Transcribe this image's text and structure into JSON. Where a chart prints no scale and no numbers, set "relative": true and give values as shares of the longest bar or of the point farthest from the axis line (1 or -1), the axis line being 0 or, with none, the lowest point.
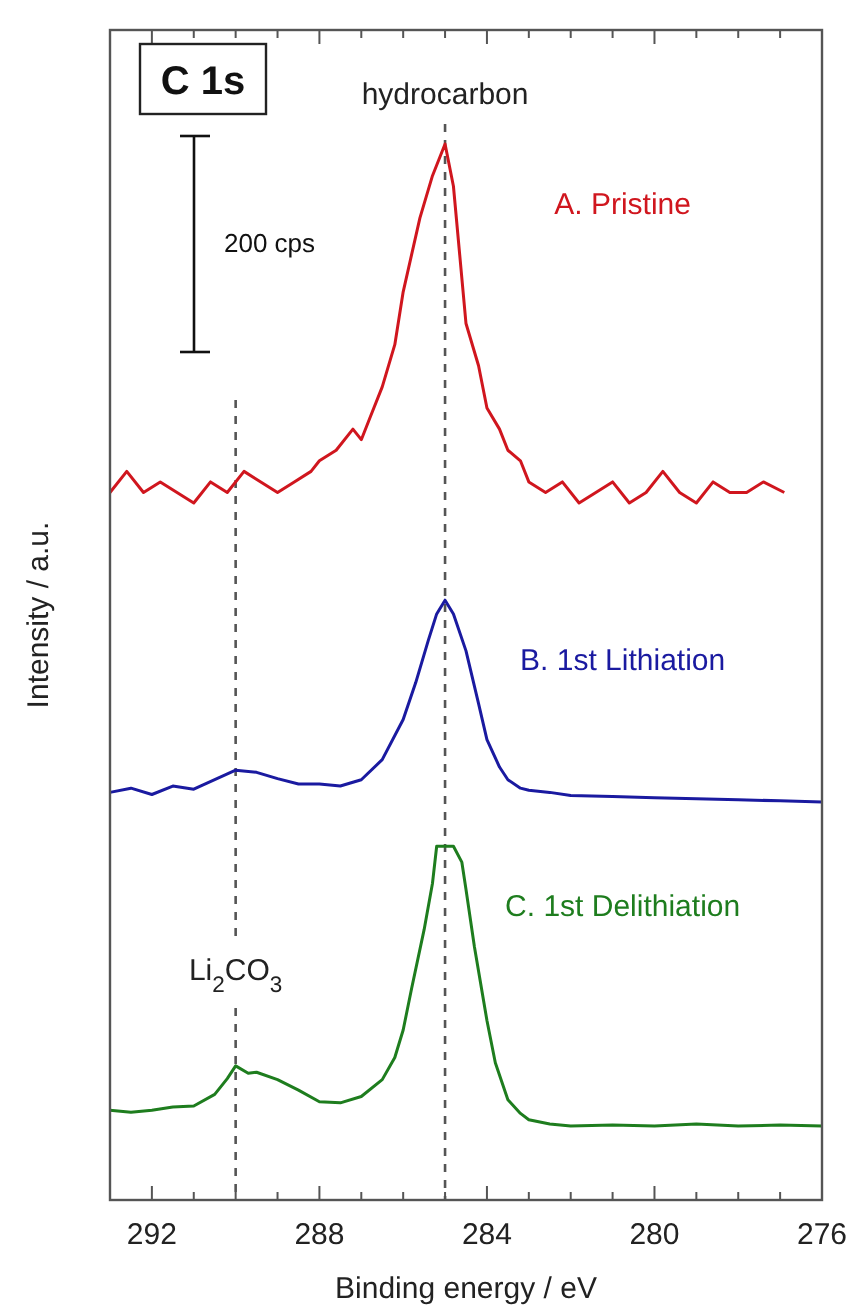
{
  "chart_data": {
    "type": "line",
    "title": "C 1s",
    "xlabel": "Binding energy / eV",
    "ylabel": "Intensity / a.u.",
    "relative": true,
    "xlim": [
      293,
      276
    ],
    "xticks": [
      292,
      {
        "value": 291,
        "label": null
      },
      {
        "value": 290,
        "label": null
      },
      {
        "value": 289,
        "label": null
      },
      288,
      {
        "value": 287,
        "label": null
      },
      {
        "value": 286,
        "label": null
      },
      {
        "value": 285,
        "label": null
      },
      284,
      {
        "value": 283,
        "label": null
      },
      {
        "value": 282,
        "label": null
      },
      {
        "value": 281,
        "label": null
      },
      280,
      {
        "value": 279,
        "label": null
      },
      {
        "value": 278,
        "label": null
      },
      {
        "value": 277,
        "label": null
      },
      276
    ],
    "annotations": [
      "200 cps"
    ],
    "ref_lines": [
      {
        "axis": "x",
        "value": 285,
        "label": "hydrocarbon",
        "line_style": "dashed",
        "color": "#555555"
      },
      {
        "axis": "x",
        "value": 290,
        "label": "Li$_{2}$CO$_{3}$",
        "line_style": "dashed",
        "color": "#555555"
      }
    ],
    "series": [
      {
        "name": "A. Pristine",
        "color": "#d0161e",
        "x": [
          293,
          292.6,
          292.2,
          291.8,
          291.4,
          291,
          290.6,
          290.2,
          289.8,
          289.4,
          289,
          288.6,
          288.2,
          288,
          287.6,
          287.2,
          287,
          286.8,
          286.5,
          286.2,
          286,
          285.6,
          285.3,
          285,
          284.8,
          284.5,
          284.2,
          284,
          283.7,
          283.5,
          283.2,
          283,
          282.6,
          282.2,
          281.8,
          281.4,
          281,
          280.6,
          280.2,
          279.8,
          279.4,
          279,
          278.6,
          278.2,
          277.8,
          277.4,
          276.9
        ],
        "values": [
          0.67,
          0.69,
          0.67,
          0.68,
          0.67,
          0.66,
          0.68,
          0.67,
          0.69,
          0.68,
          0.67,
          0.68,
          0.69,
          0.7,
          0.71,
          0.73,
          0.72,
          0.74,
          0.77,
          0.81,
          0.86,
          0.93,
          0.97,
          1,
          0.96,
          0.83,
          0.79,
          0.75,
          0.73,
          0.71,
          0.7,
          0.68,
          0.67,
          0.68,
          0.66,
          0.67,
          0.68,
          0.66,
          0.67,
          0.69,
          0.67,
          0.66,
          0.68,
          0.67,
          0.67,
          0.68,
          0.67
        ]
      },
      {
        "name": "B. 1st Lithiation",
        "color": "#1a1aa0",
        "x": [
          293,
          292.5,
          292,
          291.5,
          291,
          290.5,
          290,
          289.5,
          289,
          288.5,
          288,
          287.5,
          287,
          286.5,
          286,
          285.7,
          285.4,
          285.2,
          285,
          284.8,
          284.5,
          284.2,
          284,
          283.7,
          283.5,
          283.2,
          283,
          282.5,
          282,
          281,
          280,
          279,
          278,
          277,
          276
        ],
        "values": [
          0.386,
          0.39,
          0.384,
          0.392,
          0.389,
          0.398,
          0.407,
          0.405,
          0.399,
          0.394,
          0.394,
          0.392,
          0.398,
          0.417,
          0.455,
          0.49,
          0.53,
          0.555,
          0.568,
          0.555,
          0.52,
          0.47,
          0.436,
          0.41,
          0.398,
          0.39,
          0.388,
          0.386,
          0.383,
          0.382,
          0.381,
          0.38,
          0.379,
          0.378,
          0.377
        ]
      },
      {
        "name": "C. 1st Delithiation",
        "color": "#1e7d1e",
        "x": [
          293,
          292.5,
          292,
          291.5,
          291,
          290.5,
          290.2,
          290,
          289.7,
          289.5,
          289,
          288.5,
          288,
          287.5,
          287,
          286.5,
          286.2,
          286,
          285.8,
          285.5,
          285.3,
          285.2,
          285,
          284.8,
          284.6,
          284.5,
          284.3,
          284,
          283.8,
          283.5,
          283.2,
          283,
          282.5,
          282,
          281,
          280,
          279,
          278,
          277,
          276
        ],
        "values": [
          0.085,
          0.083,
          0.085,
          0.088,
          0.089,
          0.1,
          0.115,
          0.127,
          0.12,
          0.121,
          0.114,
          0.104,
          0.093,
          0.092,
          0.098,
          0.114,
          0.135,
          0.161,
          0.2,
          0.256,
          0.3,
          0.335,
          0.335,
          0.335,
          0.32,
          0.294,
          0.24,
          0.17,
          0.13,
          0.095,
          0.082,
          0.076,
          0.072,
          0.07,
          0.071,
          0.07,
          0.072,
          0.07,
          0.071,
          0.07
        ]
      }
    ]
  }
}
